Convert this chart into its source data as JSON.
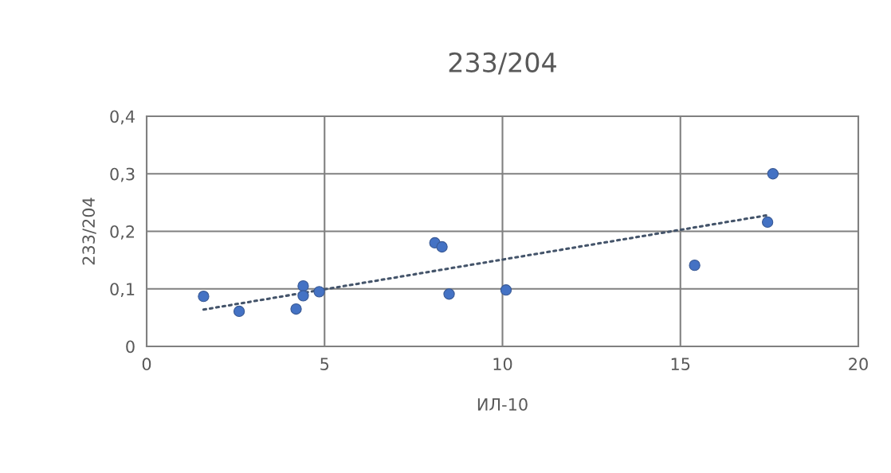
{
  "chart_data": {
    "type": "scatter",
    "title": "233/204",
    "xlabel": "ИЛ-10",
    "ylabel": "233/204",
    "series": [
      {
        "color": "#4472c4",
        "marker": "circle",
        "x": [
          1.6,
          2.6,
          4.2,
          4.4,
          4.4,
          4.85,
          8.1,
          8.3,
          8.5,
          10.1,
          15.4,
          17.45,
          17.6
        ],
        "values": [
          0.087,
          0.061,
          0.065,
          0.105,
          0.088,
          0.095,
          0.18,
          0.173,
          0.091,
          0.098,
          0.141,
          0.216,
          0.3
        ]
      },
      {
        "type": "line",
        "color": "#44546a",
        "line_style": "dotted",
        "marker": "none",
        "x": [
          1.6,
          17.45
        ],
        "values": [
          0.064,
          0.228
        ]
      }
    ],
    "xlim": [
      0,
      20
    ],
    "xticks": [
      0,
      5,
      10,
      15,
      20
    ],
    "ylim": [
      0,
      0.4
    ],
    "yticks": [
      {
        "value": 0,
        "label": "0"
      },
      {
        "value": 0.1,
        "label": "0,1"
      },
      {
        "value": 0.2,
        "label": "0,2"
      },
      {
        "value": 0.3,
        "label": "0,3"
      },
      {
        "value": 0.4,
        "label": "0,4"
      }
    ],
    "grid": true
  }
}
